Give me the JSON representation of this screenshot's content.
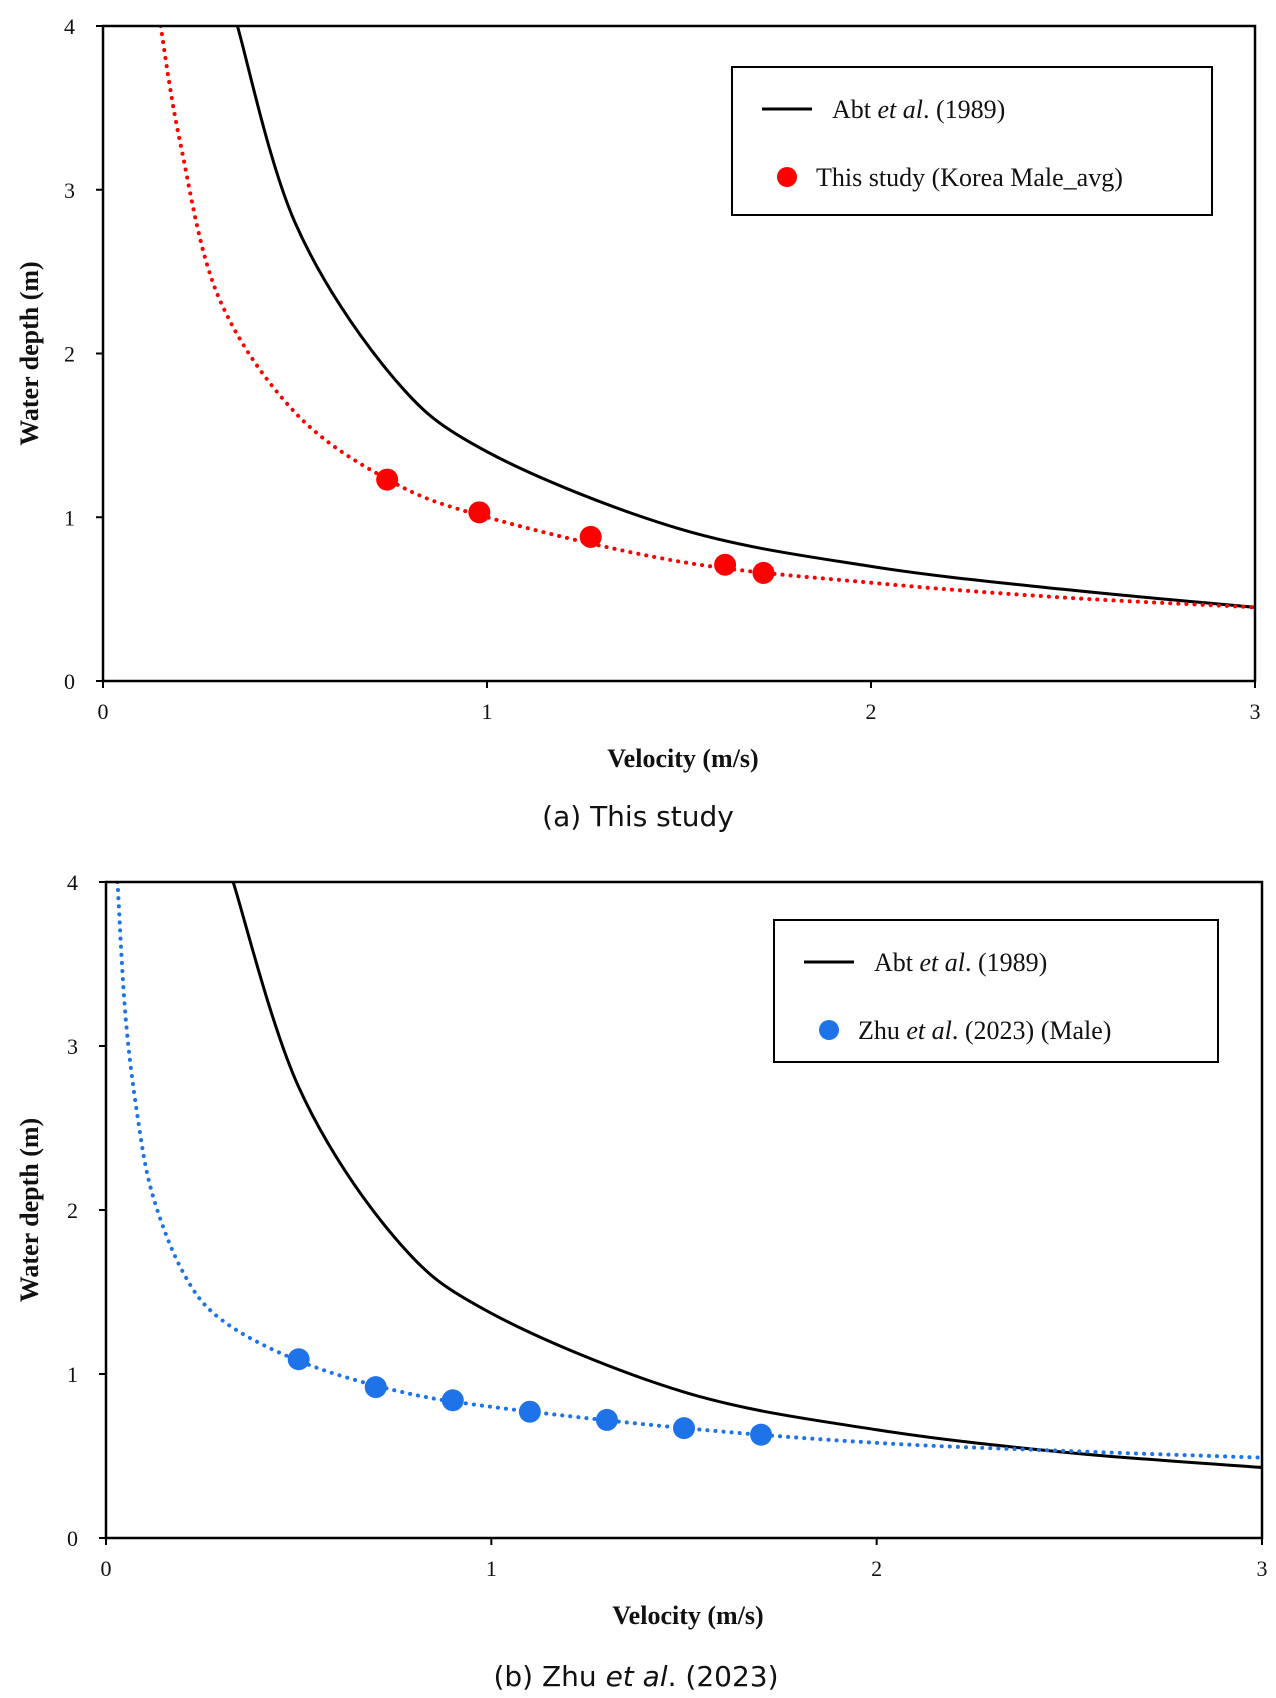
{
  "chart_data": [
    {
      "type": "scatter",
      "caption": "(a) This study",
      "xlabel": "Velocity (m/s)",
      "ylabel": "Water depth (m)",
      "xlim": [
        0,
        3
      ],
      "ylim": [
        0,
        4
      ],
      "xticks": [
        "0",
        "1",
        "2",
        "3"
      ],
      "yticks": [
        "0",
        "1",
        "2",
        "3",
        "4"
      ],
      "grid": false,
      "legend_position": "top-right",
      "series": [
        {
          "name": "Abt et al. (1989)",
          "name_parts": [
            "Abt ",
            "et al",
            ". (1989)"
          ],
          "type": "line",
          "style": "solid",
          "color": "#000000",
          "x": [
            0.35,
            0.5,
            0.75,
            1.0,
            1.5,
            2.0,
            2.5,
            3.0
          ],
          "y": [
            4.0,
            2.8,
            1.87,
            1.4,
            0.93,
            0.7,
            0.56,
            0.45
          ]
        },
        {
          "name": "This study (Korea Male_avg)",
          "name_parts": [
            "This study (Korea Male_avg)"
          ],
          "type": "scatter",
          "color": "#ff0000",
          "marker": "circle",
          "x": [
            0.74,
            0.98,
            1.27,
            1.62,
            1.72
          ],
          "y": [
            1.23,
            1.03,
            0.88,
            0.71,
            0.66
          ]
        },
        {
          "type": "line",
          "style": "dotted",
          "color": "#ff0000",
          "x": [
            0.15,
            0.2,
            0.3,
            0.5,
            0.75,
            1.0,
            1.5,
            2.0,
            2.5,
            3.0
          ],
          "y": [
            4.0,
            3.3,
            2.35,
            1.64,
            1.22,
            1.0,
            0.73,
            0.6,
            0.51,
            0.45
          ]
        }
      ]
    },
    {
      "type": "scatter",
      "caption": "(b) Zhu et al. (2023)",
      "caption_parts": [
        "(b) Zhu ",
        "et al",
        ". (2023)"
      ],
      "xlabel": "Velocity (m/s)",
      "ylabel": "Water depth (m)",
      "xlim": [
        0,
        3
      ],
      "ylim": [
        0,
        4
      ],
      "xticks": [
        "0",
        "1",
        "2",
        "3"
      ],
      "yticks": [
        "0",
        "1",
        "2",
        "3",
        "4"
      ],
      "grid": false,
      "legend_position": "top-right",
      "series": [
        {
          "name": "Abt et al. (1989)",
          "name_parts": [
            "Abt ",
            "et al",
            ". (1989)"
          ],
          "type": "line",
          "style": "solid",
          "color": "#000000",
          "x": [
            0.33,
            0.5,
            0.75,
            1.0,
            1.5,
            2.0,
            2.5,
            3.0
          ],
          "y": [
            4.0,
            2.75,
            1.83,
            1.37,
            0.89,
            0.66,
            0.52,
            0.43
          ]
        },
        {
          "name": "Zhu et al. (2023) (Male)",
          "name_parts": [
            "Zhu ",
            "et al",
            ". (2023) (Male)"
          ],
          "type": "scatter",
          "color": "#1e73e8",
          "marker": "circle",
          "x": [
            0.5,
            0.7,
            0.9,
            1.1,
            1.3,
            1.5,
            1.7
          ],
          "y": [
            1.09,
            0.92,
            0.84,
            0.77,
            0.72,
            0.67,
            0.63
          ]
        },
        {
          "type": "line",
          "style": "dotted",
          "color": "#1e73e8",
          "x": [
            0.03,
            0.05,
            0.08,
            0.12,
            0.2,
            0.3,
            0.5,
            0.75,
            1.0,
            1.5,
            2.0,
            2.5,
            3.0
          ],
          "y": [
            4.0,
            3.2,
            2.6,
            2.1,
            1.62,
            1.33,
            1.08,
            0.9,
            0.8,
            0.67,
            0.58,
            0.53,
            0.49
          ]
        }
      ]
    }
  ]
}
